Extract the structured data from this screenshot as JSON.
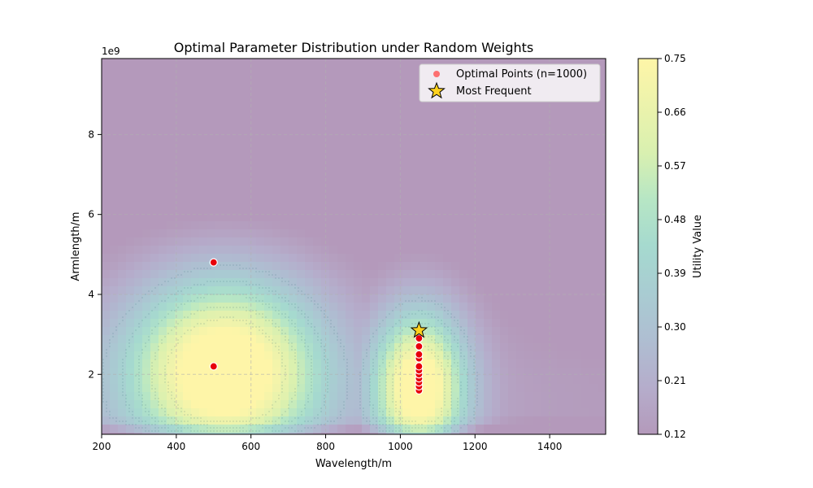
{
  "chart_data": {
    "type": "scatter",
    "title": "Optimal Parameter Distribution under Random Weights",
    "xlabel": "Wavelength/m",
    "ylabel": "Armlength/m",
    "y_scale_label": "1e9",
    "xlim": [
      200,
      1550
    ],
    "ylim": [
      0.5,
      9.9
    ],
    "x_ticks": [
      200,
      400,
      600,
      800,
      1000,
      1200,
      1400
    ],
    "x_tick_labels": [
      "200",
      "400",
      "600",
      "800",
      "1000",
      "1200",
      "1400"
    ],
    "y_ticks": [
      2,
      4,
      6,
      8
    ],
    "y_tick_labels": [
      "2",
      "4",
      "6",
      "8"
    ],
    "grid": true,
    "legend": {
      "placement": "top-right",
      "entries": [
        {
          "label": "Optimal Points (n=1000)",
          "marker": "circle",
          "color": "#ff5a5a"
        },
        {
          "label": "Most Frequent",
          "marker": "star",
          "color": "#ffd21e"
        }
      ]
    },
    "colorbar": {
      "label": "Utility Value",
      "range": [
        0.12,
        0.75
      ],
      "ticks": [
        0.12,
        0.21,
        0.3,
        0.39,
        0.48,
        0.57,
        0.66,
        0.75
      ],
      "tick_labels": [
        "0.12",
        "0.21",
        "0.30",
        "0.39",
        "0.48",
        "0.57",
        "0.66",
        "0.75"
      ],
      "colormap": "viridis",
      "alpha": 0.4
    },
    "series": [
      {
        "name": "Optimal Points (n=1000)",
        "color": "#e8000b",
        "points": [
          {
            "x": 500,
            "y": 4.8
          },
          {
            "x": 500,
            "y": 2.2
          },
          {
            "x": 1050,
            "y": 1.6
          },
          {
            "x": 1050,
            "y": 1.7
          },
          {
            "x": 1050,
            "y": 1.8
          },
          {
            "x": 1050,
            "y": 1.9
          },
          {
            "x": 1050,
            "y": 2.0
          },
          {
            "x": 1050,
            "y": 2.1
          },
          {
            "x": 1050,
            "y": 2.2
          },
          {
            "x": 1050,
            "y": 2.4
          },
          {
            "x": 1050,
            "y": 2.5
          },
          {
            "x": 1050,
            "y": 2.7
          },
          {
            "x": 1050,
            "y": 2.9
          }
        ]
      },
      {
        "name": "Most Frequent",
        "color": "#ffd21e",
        "points": [
          {
            "x": 1050,
            "y": 3.1
          }
        ]
      }
    ]
  }
}
